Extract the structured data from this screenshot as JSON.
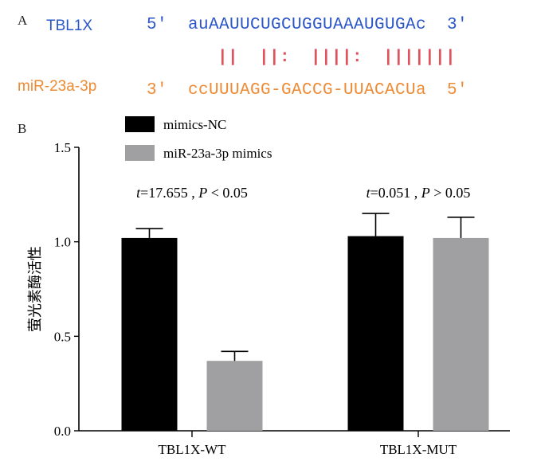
{
  "panel_a": {
    "label": "A",
    "target_name": "TBL1X",
    "target_seq": "5'  auAAUUCUGCUGGUAAAUGUGAc  3'",
    "pairing": "||  ||:  ||||:  |||||||",
    "mirna_name": "miR-23a-3p",
    "mirna_seq": "3'  ccUUUAGG-GACCG-UUACACUa  5'",
    "colors": {
      "target": "#2a56c9",
      "mirna": "#ee8a33",
      "pairing": "#e0525c"
    }
  },
  "panel_b": {
    "label": "B"
  },
  "chart_data": {
    "type": "bar",
    "title": "",
    "xlabel": "",
    "ylabel": "萤光素酶活性",
    "ylim": [
      0,
      1.5
    ],
    "yticks": [
      "0.0",
      "0.5",
      "1.0",
      "1.5"
    ],
    "categories": [
      "TBL1X-WT",
      "TBL1X-MUT"
    ],
    "series": [
      {
        "name": "mimics-NC",
        "color": "#000000",
        "values": [
          1.02,
          1.03
        ],
        "errors": [
          0.05,
          0.12
        ]
      },
      {
        "name": "miR-23a-3p mimics",
        "color": "#a0a0a2",
        "values": [
          0.37,
          1.02
        ],
        "errors": [
          0.05,
          0.11
        ]
      }
    ],
    "annotations": [
      {
        "category": "TBL1X-WT",
        "text": "t=17.655 , P < 0.05"
      },
      {
        "category": "TBL1X-MUT",
        "text": "t=0.051 , P > 0.05"
      }
    ],
    "legend_position": "top-left"
  }
}
